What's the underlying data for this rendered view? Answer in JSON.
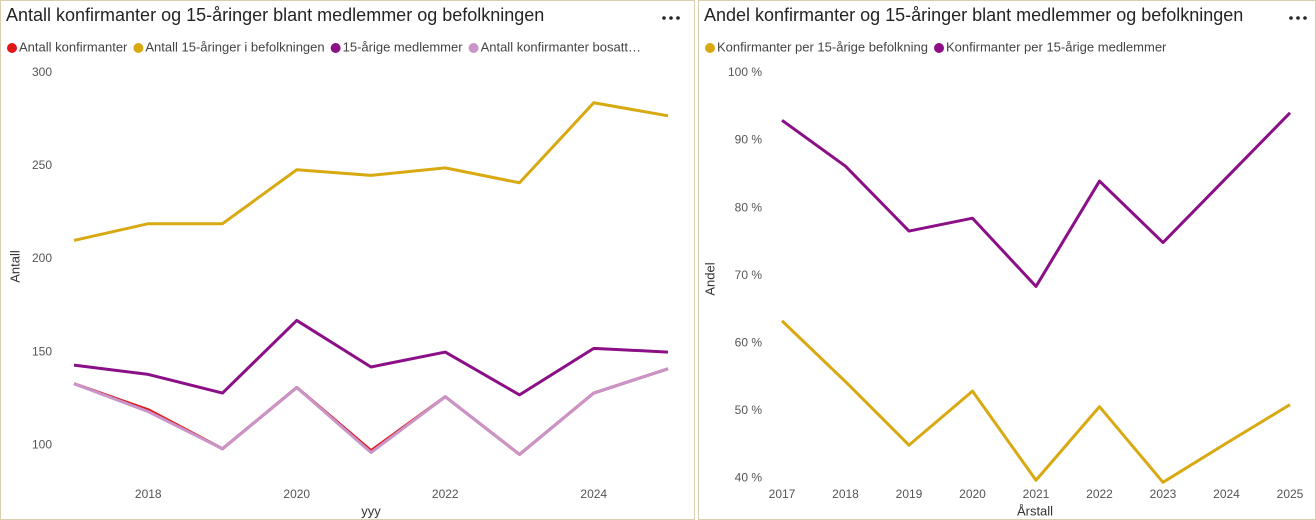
{
  "chart_data": [
    {
      "type": "line",
      "title": "Antall konfirmanter og 15-åringer blant medlemmer og befolkningen",
      "x": [
        2017,
        2018,
        2019,
        2020,
        2021,
        2022,
        2023,
        2024,
        2025
      ],
      "series": [
        {
          "name": "Antall konfirmanter",
          "color": "#e0161b",
          "values": [
            133,
            119,
            98,
            131,
            97,
            126,
            95,
            128,
            141
          ]
        },
        {
          "name": "Antall 15-åringer i befolkningen",
          "color": "#d8a911",
          "values": [
            210,
            219,
            219,
            248,
            245,
            249,
            241,
            284,
            277
          ]
        },
        {
          "name": "15-årige medlemmer",
          "color": "#8b0f87",
          "values": [
            143,
            138,
            128,
            167,
            142,
            150,
            127,
            152,
            150
          ]
        },
        {
          "name": "Antall konfirmanter bosatt…",
          "color": "#c994c7",
          "values": [
            133,
            118,
            98,
            131,
            96,
            126,
            95,
            128,
            141
          ]
        }
      ],
      "xlim": [
        2017,
        2025
      ],
      "xticks": [
        2018,
        2020,
        2022,
        2024
      ],
      "ylim": [
        92,
        300
      ],
      "yticks": [
        100,
        150,
        200,
        250,
        300
      ],
      "x_label": "yyy",
      "y_label": "Antall",
      "grid": false
    },
    {
      "type": "line",
      "title": "Andel konfirmanter og 15-åringer blant medlemmer og befolkningen",
      "x": [
        2017,
        2018,
        2019,
        2020,
        2021,
        2022,
        2023,
        2024,
        2025
      ],
      "series": [
        {
          "name": "Konfirmanter per 15-årige befolkning",
          "color": "#d8a911",
          "values": [
            63.3,
            54.3,
            44.9,
            52.9,
            39.7,
            50.6,
            39.4,
            45.2,
            50.9
          ]
        },
        {
          "name": "Konfirmanter per 15-årige medlemmer",
          "color": "#8b0f87",
          "values": [
            93,
            86.2,
            76.6,
            78.5,
            68.4,
            84,
            74.9,
            84.5,
            94.1
          ]
        }
      ],
      "xlim": [
        2017,
        2025
      ],
      "xticks": [
        2017,
        2018,
        2019,
        2020,
        2021,
        2022,
        2023,
        2024,
        2025
      ],
      "ylim": [
        39,
        100
      ],
      "yticks": [
        {
          "value": 40,
          "label": "40 %"
        },
        {
          "value": 50,
          "label": "50 %"
        },
        {
          "value": 60,
          "label": "60 %"
        },
        {
          "value": 70,
          "label": "70 %"
        },
        {
          "value": 80,
          "label": "80 %"
        },
        {
          "value": 90,
          "label": "90 %"
        },
        {
          "value": 100,
          "label": "100 %"
        }
      ],
      "x_label": "Årstall",
      "y_label": "Andel",
      "grid": false
    }
  ]
}
